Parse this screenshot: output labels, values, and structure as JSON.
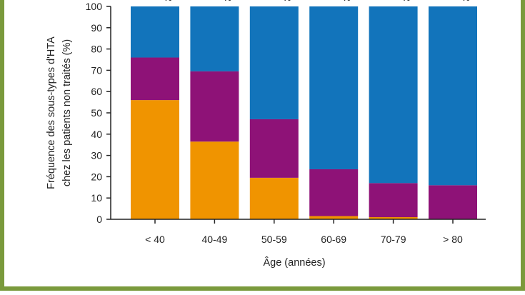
{
  "chart_data": {
    "type": "bar",
    "stacked": true,
    "categories": [
      "< 40",
      "40-49",
      "50-59",
      "60-69",
      "70-79",
      "> 80"
    ],
    "series": [
      {
        "values": [
          56,
          36.5,
          19.5,
          1.5,
          1,
          0
        ]
      },
      {
        "values": [
          20,
          33,
          27.5,
          22,
          16,
          16
        ]
      },
      {
        "values": [
          24,
          30.5,
          53,
          76.5,
          83,
          84
        ]
      }
    ],
    "colors": [
      "#f09400",
      "#8e1277",
      "#1274bb"
    ],
    "xlabel": "Âge (années)",
    "ylabel_line1": "Fréquence des sous-types d'HTA",
    "ylabel_line2": "chez les patients non traités (%)",
    "ylim": [
      0,
      100
    ],
    "yticks": [
      0,
      10,
      20,
      30,
      40,
      50,
      60,
      70,
      80,
      90,
      100
    ],
    "grid": false,
    "top_labels": [
      "%",
      "%",
      "%",
      "%",
      "%",
      "%"
    ]
  }
}
